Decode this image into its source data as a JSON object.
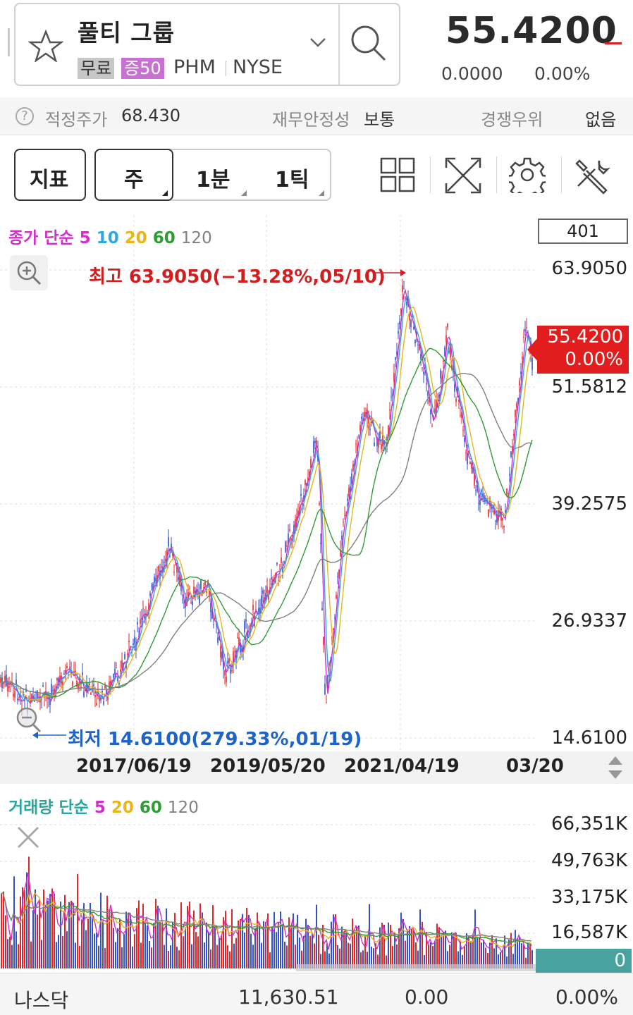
{
  "header": {
    "name": "풀티 그룹",
    "badges": [
      "무료",
      "증50"
    ],
    "ticker": "PHM",
    "exchange": "NYSE",
    "price": "55.4200",
    "change": "0.0000",
    "change_pct": "0.00%"
  },
  "info": {
    "fair_price_label": "적정주가",
    "fair_price": "68.430",
    "stability_label": "재무안정성",
    "stability": "보통",
    "competitive_label": "경쟁우위",
    "competitive": "없음"
  },
  "toolbar": {
    "indicator": "지표",
    "periods": [
      "주",
      "1분",
      "1틱"
    ]
  },
  "chart": {
    "ma_legend_prefix": "종가 단순",
    "ma_periods": [
      "5",
      "10",
      "20",
      "60",
      "120"
    ],
    "ma_colors": [
      "#d12fc8",
      "#2ea8e0",
      "#e8b51c",
      "#2f9c35",
      "#808080"
    ],
    "count_box": "401",
    "price_labels": [
      "63.9050",
      "51.5812",
      "39.2575",
      "26.9337",
      "14.6100"
    ],
    "current_tag_price": "55.4200",
    "current_tag_pct": "0.00%",
    "high_annotation": "최고 63.9050(−13.28%,05/10)",
    "low_annotation": "최저 14.6100(279.33%,01/19)",
    "date_labels": [
      "2017/06/19",
      "2019/05/20",
      "2021/04/19",
      "03/20"
    ]
  },
  "volume": {
    "legend_prefix": "거래량 단순",
    "ma_periods": [
      "5",
      "20",
      "60",
      "120"
    ],
    "ma_colors": [
      "#d12fc8",
      "#e8b51c",
      "#2f9c35",
      "#808080"
    ],
    "labels": [
      "66,351K",
      "49,763K",
      "33,175K",
      "16,587K"
    ],
    "current": "0"
  },
  "footer": {
    "index_name": "나스닥",
    "index_value": "11,630.51",
    "index_change": "0.00",
    "index_pct": "0.00%"
  }
}
